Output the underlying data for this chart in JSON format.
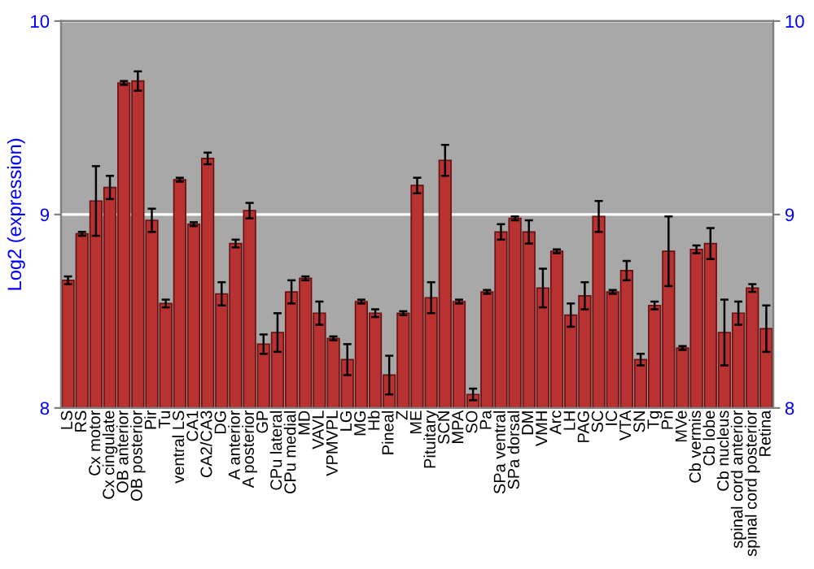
{
  "chart_data": {
    "type": "bar",
    "ylabel": "Log2 (expression)",
    "categories": [
      "LS",
      "RS",
      "Cx motor",
      "Cx cingulate",
      "OB anterior",
      "OB posterior",
      "Pir",
      "Tu",
      "ventral LS",
      "CA1",
      "CA2/CA3",
      "DG",
      "A anterior",
      "A posterior",
      "GP",
      "CPu lateral",
      "CPu medial",
      "MD",
      "VAVL",
      "VPMVPL",
      "LG",
      "MG",
      "Hb",
      "Pineal",
      "Z",
      "ME",
      "Pituitary",
      "SCN",
      "MPA",
      "SO",
      "Pa",
      "SPa ventral",
      "SPa dorsal",
      "DM",
      "VMH",
      "Arc",
      "LH",
      "PAG",
      "SC",
      "IC",
      "VTA",
      "SN",
      "Tg",
      "Pn",
      "MVe",
      "Cb vermis",
      "Cb lobe",
      "Cb nucleus",
      "spinal cord anterior",
      "spinal cord posterior",
      "Retina"
    ],
    "values": [
      8.66,
      8.9,
      9.07,
      9.14,
      9.68,
      9.69,
      8.97,
      8.54,
      9.18,
      8.95,
      9.29,
      8.59,
      8.85,
      9.02,
      8.33,
      8.39,
      8.6,
      8.67,
      8.49,
      8.36,
      8.25,
      8.55,
      8.49,
      8.17,
      8.49,
      9.15,
      8.57,
      9.28,
      8.55,
      8.07,
      8.6,
      8.91,
      8.98,
      8.91,
      8.62,
      8.81,
      8.48,
      8.58,
      8.99,
      8.6,
      8.71,
      8.25,
      8.53,
      8.81,
      8.31,
      8.82,
      8.85,
      8.39,
      8.49,
      8.62,
      8.41
    ],
    "errors": [
      0.02,
      0.01,
      0.18,
      0.06,
      0.01,
      0.05,
      0.06,
      0.02,
      0.01,
      0.01,
      0.03,
      0.06,
      0.02,
      0.04,
      0.05,
      0.1,
      0.06,
      0.01,
      0.06,
      0.01,
      0.08,
      0.01,
      0.02,
      0.1,
      0.01,
      0.04,
      0.08,
      0.08,
      0.01,
      0.03,
      0.01,
      0.04,
      0.01,
      0.06,
      0.1,
      0.01,
      0.06,
      0.07,
      0.08,
      0.01,
      0.05,
      0.03,
      0.02,
      0.18,
      0.01,
      0.02,
      0.08,
      0.17,
      0.06,
      0.02,
      0.12
    ],
    "color": "#b83232",
    "ylim": [
      8,
      10
    ],
    "yticks": [
      8,
      9,
      10
    ],
    "y2lim": [
      8,
      10
    ],
    "y2ticks": [
      8,
      9,
      10
    ],
    "grid": "y"
  }
}
